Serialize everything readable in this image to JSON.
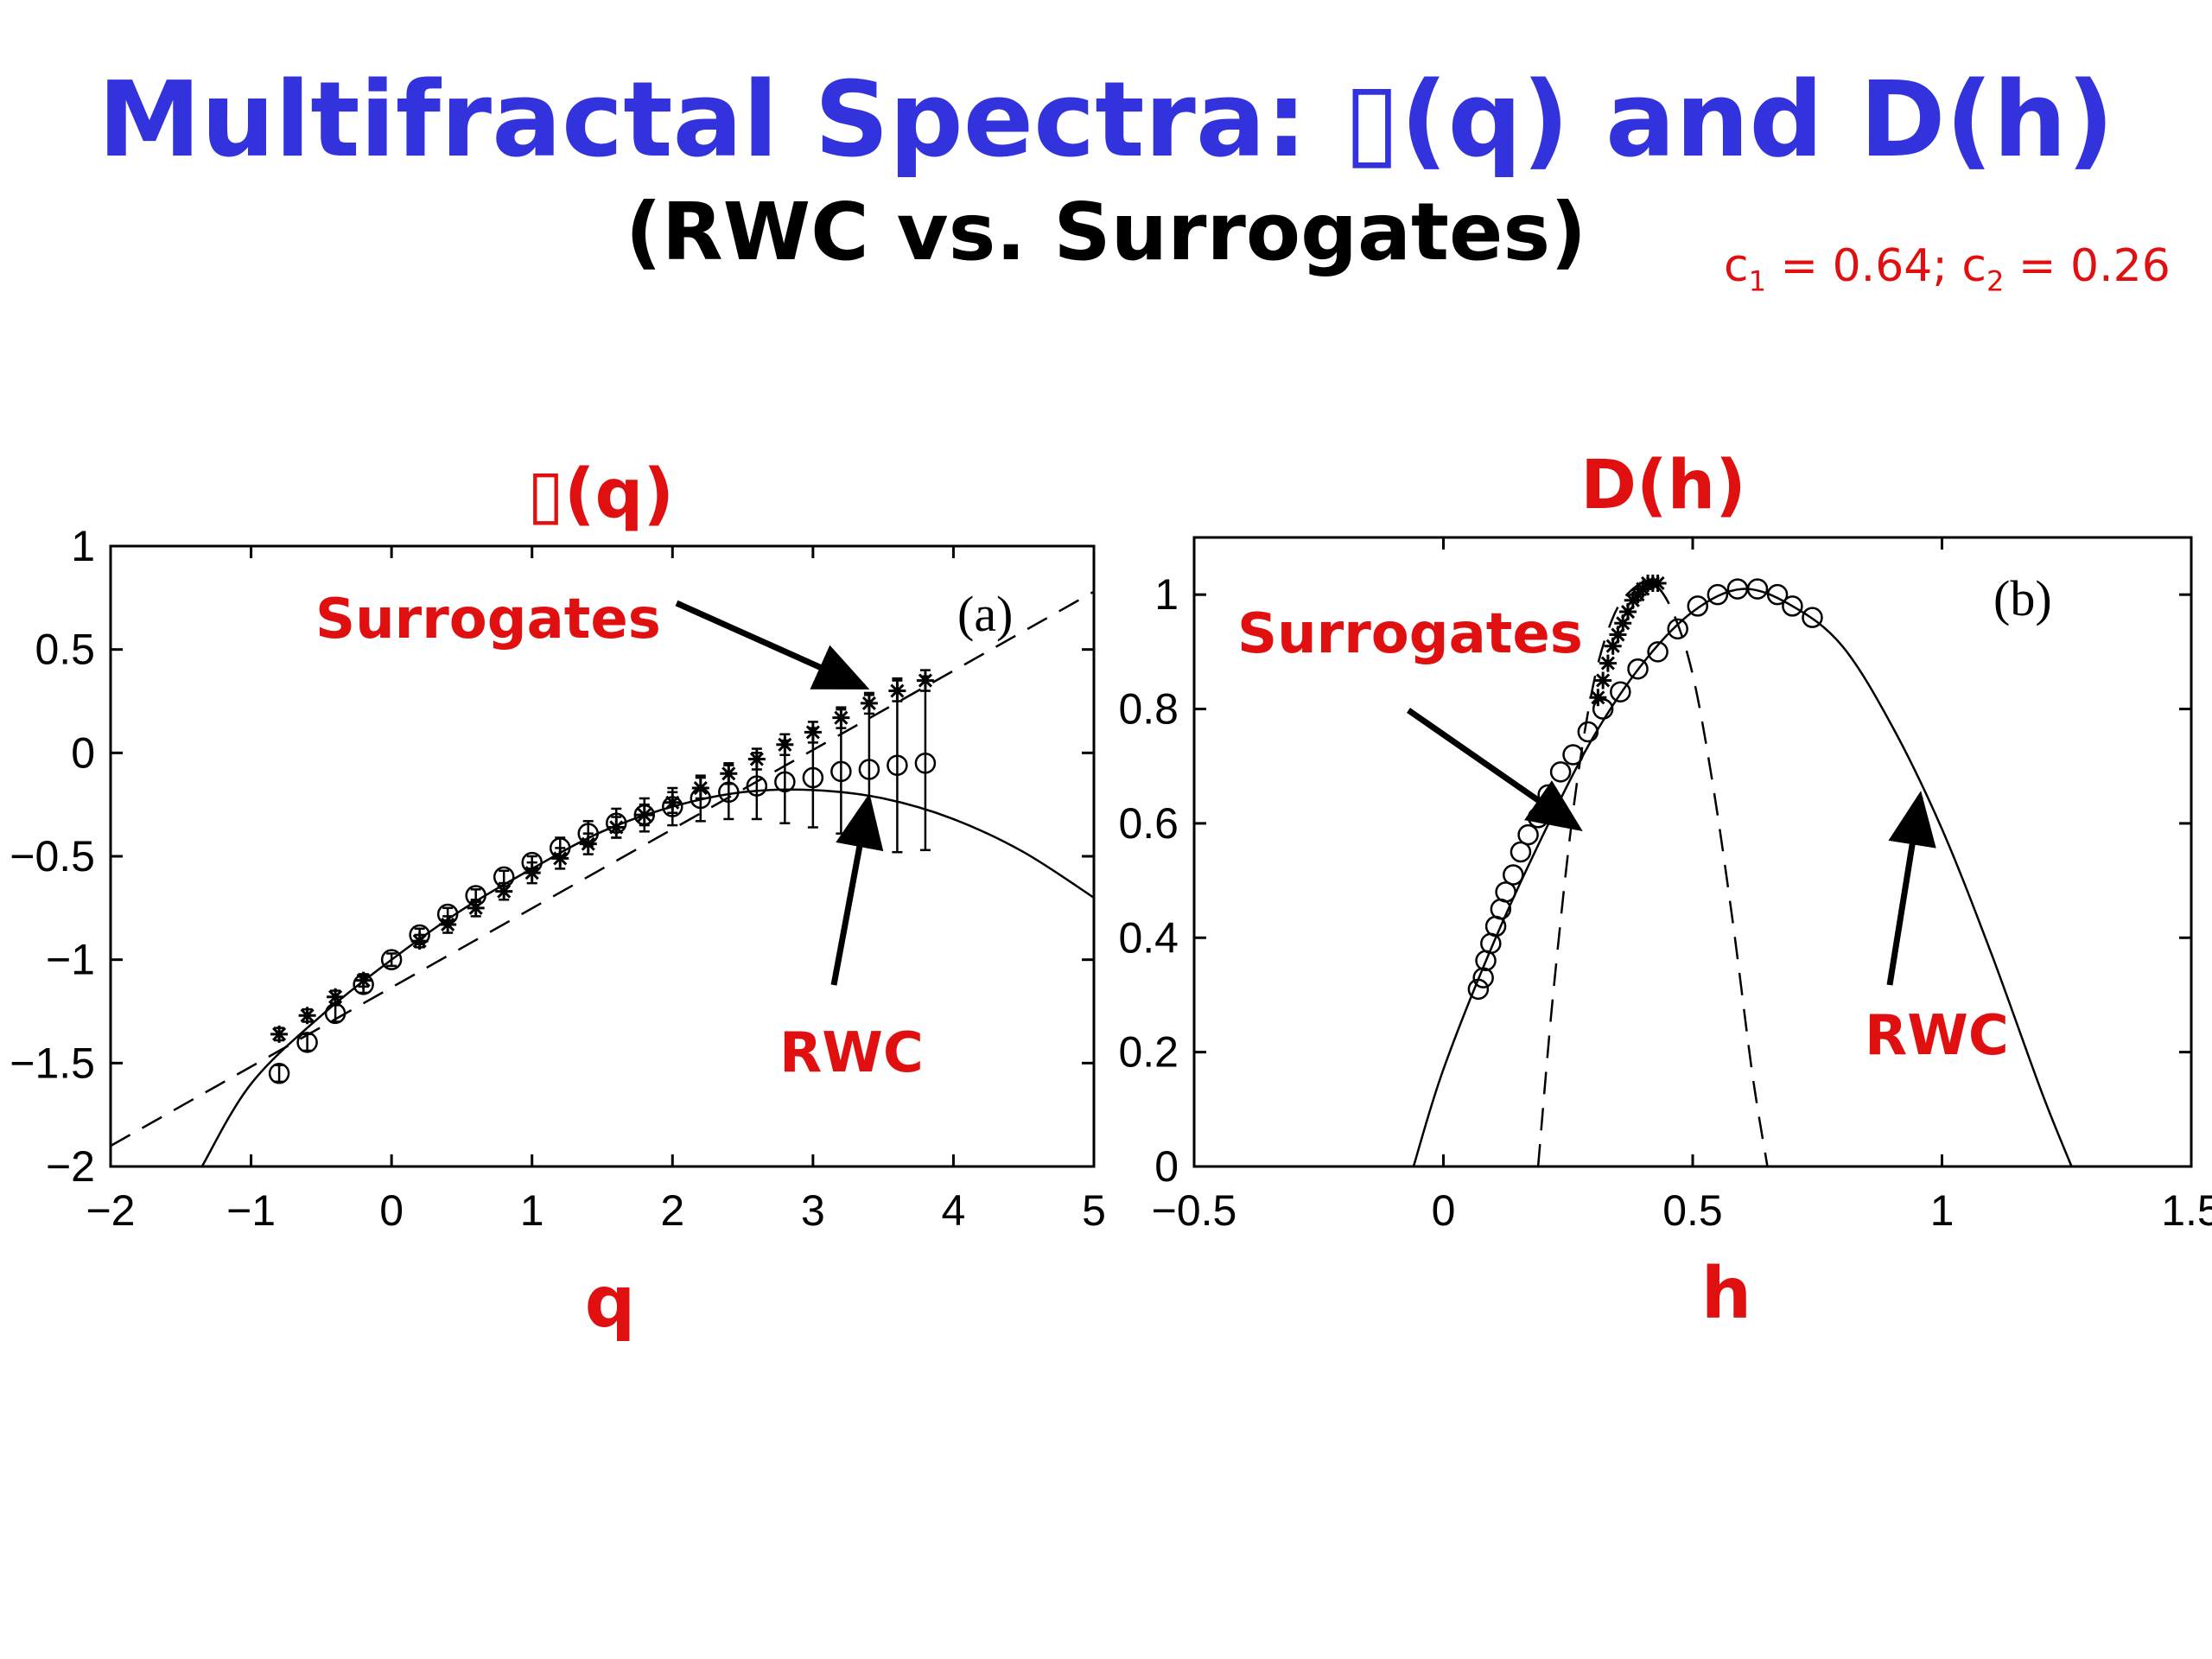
{
  "slide": {
    "title": "Multifractal Spectra: ▯(q) and D(h)",
    "subtitle": "(RWC vs. Surrogates)",
    "params": {
      "c1_sym": "c",
      "c1_sub": "1",
      "c1_val": " = 0.64; ",
      "c2_sym": "c",
      "c2_sub": "2",
      "c2_val": " = 0.26"
    }
  },
  "chart_data": [
    {
      "type": "scatter",
      "title": "▯(q)",
      "panel_label": "(a)",
      "xlabel": "q",
      "xlim": [
        -2,
        5
      ],
      "ylim": [
        -2,
        1
      ],
      "xticks": [
        -2,
        -1,
        0,
        1,
        2,
        3,
        4,
        5
      ],
      "xtick_labels": [
        "−2",
        "−1",
        "0",
        "1",
        "2",
        "3",
        "4",
        "5"
      ],
      "yticks": [
        1,
        0.5,
        0,
        -0.5,
        -1,
        -1.5,
        -2
      ],
      "ytick_labels": [
        "1",
        "0.5",
        "0",
        "−0.5",
        "−1",
        "−1.5",
        "−2"
      ],
      "annotations": [
        "Surrogates",
        "RWC"
      ],
      "series": [
        {
          "name": "RWC",
          "marker": "circle",
          "x": [
            -0.8,
            -0.6,
            -0.4,
            -0.2,
            0,
            0.2,
            0.4,
            0.6,
            0.8,
            1.0,
            1.2,
            1.4,
            1.6,
            1.8,
            2.0,
            2.2,
            2.4,
            2.6,
            2.8,
            3.0,
            3.2,
            3.4,
            3.6,
            3.8
          ],
          "y": [
            -1.55,
            -1.4,
            -1.26,
            -1.12,
            -1.0,
            -0.88,
            -0.78,
            -0.69,
            -0.6,
            -0.53,
            -0.46,
            -0.39,
            -0.34,
            -0.3,
            -0.26,
            -0.22,
            -0.19,
            -0.16,
            -0.14,
            -0.12,
            -0.09,
            -0.08,
            -0.06,
            -0.05
          ],
          "err": [
            0.04,
            0.04,
            0.04,
            0.04,
            0.03,
            0.03,
            0.03,
            0.03,
            0.03,
            0.03,
            0.05,
            0.06,
            0.07,
            0.08,
            0.09,
            0.11,
            0.13,
            0.16,
            0.2,
            0.24,
            0.3,
            0.36,
            0.42,
            0.42
          ]
        },
        {
          "name": "Surrogates",
          "marker": "star",
          "x": [
            -0.8,
            -0.6,
            -0.4,
            -0.2,
            0.2,
            0.4,
            0.6,
            0.8,
            1.0,
            1.2,
            1.4,
            1.6,
            1.8,
            2.0,
            2.2,
            2.4,
            2.6,
            2.8,
            3.0,
            3.2,
            3.4,
            3.6,
            3.8
          ],
          "y": [
            -1.36,
            -1.27,
            -1.18,
            -1.1,
            -0.91,
            -0.83,
            -0.75,
            -0.67,
            -0.58,
            -0.51,
            -0.44,
            -0.36,
            -0.3,
            -0.24,
            -0.17,
            -0.1,
            -0.03,
            0.04,
            0.1,
            0.17,
            0.24,
            0.3,
            0.35
          ],
          "err": [
            0.03,
            0.03,
            0.03,
            0.03,
            0.03,
            0.04,
            0.04,
            0.04,
            0.05,
            0.05,
            0.05,
            0.05,
            0.05,
            0.05,
            0.05,
            0.05,
            0.05,
            0.05,
            0.05,
            0.05,
            0.05,
            0.05,
            0.05
          ]
        }
      ],
      "fit_lines": [
        {
          "name": "RWC",
          "style": "solid",
          "x": [
            -1.35,
            -1,
            -0.5,
            0,
            0.5,
            1,
            1.5,
            2,
            2.5,
            3,
            3.5,
            4,
            4.5,
            5
          ],
          "y": [
            -2.0,
            -1.6,
            -1.27,
            -1.0,
            -0.76,
            -0.56,
            -0.38,
            -0.26,
            -0.19,
            -0.18,
            -0.22,
            -0.32,
            -0.48,
            -0.7
          ]
        },
        {
          "name": "Surrogates",
          "style": "dashed",
          "x": [
            -2,
            5
          ],
          "y": [
            -1.9,
            0.78
          ]
        }
      ]
    },
    {
      "type": "scatter",
      "title": "D(h)",
      "panel_label": "(b)",
      "xlabel": "h",
      "xlim": [
        -0.5,
        1.5
      ],
      "ylim": [
        0,
        1.1
      ],
      "xticks": [
        -0.5,
        0,
        0.5,
        1,
        1.5
      ],
      "xtick_labels": [
        "−0.5",
        "0",
        "0.5",
        "1",
        "1.5"
      ],
      "yticks": [
        0,
        0.2,
        0.4,
        0.6,
        0.8,
        1
      ],
      "ytick_labels": [
        "0",
        "0.2",
        "0.4",
        "0.6",
        "0.8",
        "1"
      ],
      "annotations": [
        "Surrogates",
        "RWC"
      ],
      "series": [
        {
          "name": "RWC",
          "marker": "circle",
          "x": [
            0.07,
            0.08,
            0.085,
            0.095,
            0.105,
            0.115,
            0.125,
            0.14,
            0.155,
            0.17,
            0.19,
            0.21,
            0.235,
            0.26,
            0.29,
            0.32,
            0.355,
            0.39,
            0.43,
            0.47,
            0.51,
            0.55,
            0.59,
            0.63,
            0.67,
            0.7,
            0.74
          ],
          "y": [
            0.31,
            0.33,
            0.36,
            0.39,
            0.42,
            0.45,
            0.48,
            0.51,
            0.55,
            0.58,
            0.61,
            0.65,
            0.69,
            0.72,
            0.76,
            0.8,
            0.83,
            0.87,
            0.9,
            0.94,
            0.98,
            1.0,
            1.01,
            1.01,
            1.0,
            0.98,
            0.96
          ]
        },
        {
          "name": "Surrogates",
          "marker": "star",
          "x": [
            0.31,
            0.32,
            0.33,
            0.34,
            0.35,
            0.36,
            0.37,
            0.38,
            0.39,
            0.4,
            0.41,
            0.42,
            0.43
          ],
          "y": [
            0.82,
            0.85,
            0.88,
            0.91,
            0.93,
            0.95,
            0.97,
            0.99,
            1.0,
            1.01,
            1.02,
            1.02,
            1.02
          ]
        }
      ],
      "fit_lines": [
        {
          "name": "RWC",
          "style": "solid",
          "x": [
            -0.06,
            0.0,
            0.1,
            0.2,
            0.3,
            0.4,
            0.5,
            0.6,
            0.7,
            0.8,
            0.9,
            1.0,
            1.1,
            1.2,
            1.26
          ],
          "y": [
            0.0,
            0.17,
            0.39,
            0.58,
            0.75,
            0.88,
            0.97,
            1.01,
            0.98,
            0.91,
            0.77,
            0.59,
            0.37,
            0.13,
            0.0
          ]
        },
        {
          "name": "Surrogates",
          "style": "dashed",
          "x": [
            0.19,
            0.22,
            0.26,
            0.3,
            0.34,
            0.38,
            0.42,
            0.46,
            0.5,
            0.54,
            0.58,
            0.62,
            0.65
          ],
          "y": [
            0.0,
            0.3,
            0.62,
            0.84,
            0.96,
            1.01,
            1.02,
            0.97,
            0.86,
            0.67,
            0.43,
            0.16,
            0.0
          ]
        }
      ]
    }
  ]
}
